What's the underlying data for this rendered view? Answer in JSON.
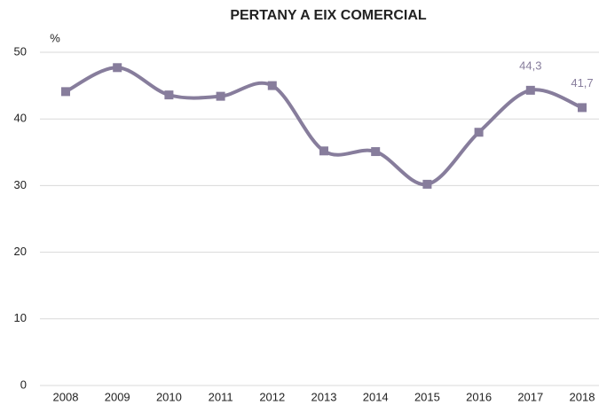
{
  "chart_data": {
    "type": "line",
    "title": "PERTANY A EIX COMERCIAL",
    "y_label": "%",
    "categories": [
      "2008",
      "2009",
      "2010",
      "2011",
      "2012",
      "2013",
      "2014",
      "2015",
      "2016",
      "2017",
      "2018"
    ],
    "series": [
      {
        "name": "Pertany a eix comercial",
        "color": "#877d9c",
        "values": [
          44.1,
          47.7,
          43.6,
          43.4,
          45.0,
          35.2,
          35.1,
          30.2,
          38.0,
          44.3,
          41.7
        ],
        "value_labels": [
          null,
          null,
          null,
          null,
          null,
          null,
          null,
          null,
          null,
          "44,3",
          "41,7"
        ]
      }
    ],
    "ylim": [
      0,
      50
    ],
    "yticks": [
      0,
      10,
      20,
      30,
      40,
      50
    ],
    "grid": true,
    "smooth": true
  }
}
